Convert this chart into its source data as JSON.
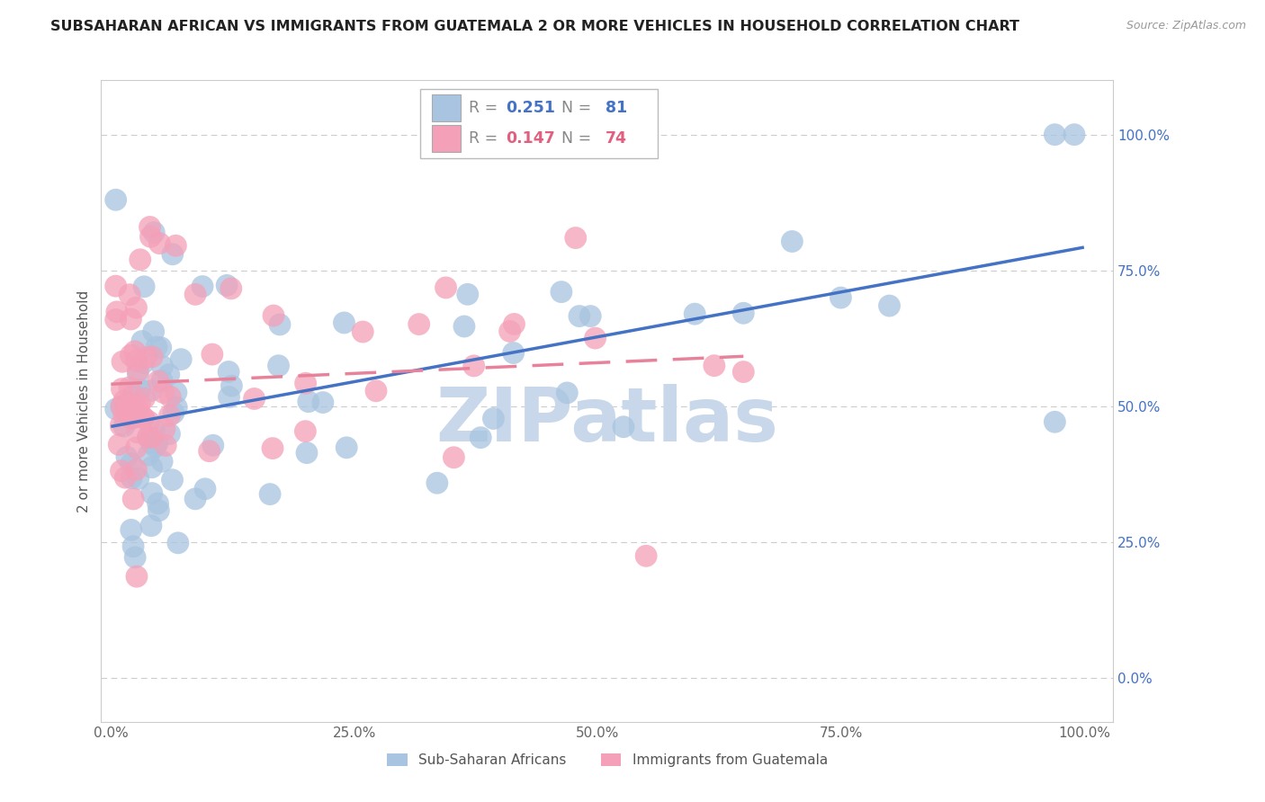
{
  "title": "SUBSAHARAN AFRICAN VS IMMIGRANTS FROM GUATEMALA 2 OR MORE VEHICLES IN HOUSEHOLD CORRELATION CHART",
  "source": "Source: ZipAtlas.com",
  "ylabel": "2 or more Vehicles in Household",
  "xlim": [
    0,
    100
  ],
  "ylim": [
    0,
    100
  ],
  "ytick_labels": [
    "0.0%",
    "25.0%",
    "50.0%",
    "75.0%",
    "100.0%"
  ],
  "ytick_values": [
    0,
    25,
    50,
    75,
    100
  ],
  "xtick_labels": [
    "0.0%",
    "25.0%",
    "50.0%",
    "75.0%",
    "100.0%"
  ],
  "xtick_values": [
    0,
    25,
    50,
    75,
    100
  ],
  "blue_R": 0.251,
  "blue_N": 81,
  "pink_R": 0.147,
  "pink_N": 74,
  "blue_color": "#a8c4e0",
  "pink_color": "#f4a0b8",
  "blue_line_color": "#4472c4",
  "pink_line_color": "#e8829a",
  "blue_label": "Sub-Saharan Africans",
  "pink_label": "Immigrants from Guatemala",
  "watermark": "ZIPatlas",
  "watermark_color": "#c8d8ea",
  "background_color": "#ffffff",
  "grid_color": "#cccccc",
  "blue_intercept": 47,
  "blue_slope": 0.25,
  "pink_intercept": 52,
  "pink_slope": 0.22,
  "pink_x_max": 65
}
